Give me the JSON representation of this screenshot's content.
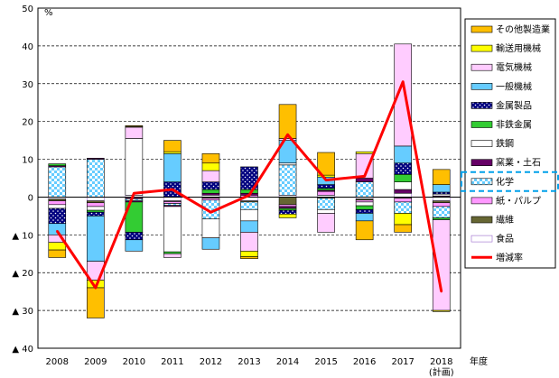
{
  "chart_data": {
    "type": "bar",
    "subtype": "stacked-bar-with-line",
    "y_unit": "%",
    "xlabel": "年度",
    "categories": [
      "2008",
      "2009",
      "2010",
      "2011",
      "2012",
      "2013",
      "2014",
      "2015",
      "2016",
      "2017",
      "2018"
    ],
    "category_notes": [
      "",
      "",
      "",
      "",
      "",
      "",
      "",
      "",
      "",
      "",
      "(計画)"
    ],
    "ylim": [
      -40,
      50
    ],
    "yticks": [
      {
        "value": 50,
        "label": "50"
      },
      {
        "value": 40,
        "label": "40"
      },
      {
        "value": 30,
        "label": "30"
      },
      {
        "value": 20,
        "label": "20"
      },
      {
        "value": 10,
        "label": "10"
      },
      {
        "value": 0,
        "label": "0"
      },
      {
        "value": -10,
        "label": "▲ 10"
      },
      {
        "value": -20,
        "label": "▲ 20"
      },
      {
        "value": -30,
        "label": "▲ 30"
      },
      {
        "value": -40,
        "label": "▲ 40"
      }
    ],
    "grid": "horizontal-dashed",
    "legend_position": "right",
    "highlighted_legend_entry": "化学",
    "series": [
      {
        "name": "食品",
        "type": "bar",
        "color": "#ffffff",
        "pattern": "outline-purple",
        "values": [
          -0.5,
          -1.0,
          0.5,
          -1.0,
          0.5,
          -1.0,
          0.5,
          0.5,
          -0.5,
          1.0,
          -1.0
        ]
      },
      {
        "name": "繊維",
        "type": "bar",
        "color": "#666633",
        "pattern": "solid",
        "values": [
          -0.5,
          -0.5,
          -0.2,
          -0.2,
          -0.3,
          -0.3,
          -2.0,
          -0.3,
          -0.3,
          -0.3,
          -0.5
        ]
      },
      {
        "name": "紙・パルプ",
        "type": "bar",
        "color": "#ff99ff",
        "pattern": "solid",
        "values": [
          -1.0,
          -1.0,
          -0.3,
          -0.5,
          -0.5,
          0.5,
          -0.5,
          1.0,
          -0.5,
          -1.0,
          -1.0
        ]
      },
      {
        "name": "化学",
        "type": "bar",
        "color": "#66ccff",
        "pattern": "checker",
        "values": [
          8.0,
          10.0,
          -0.5,
          -0.5,
          -5.0,
          -2.0,
          8.0,
          -3.0,
          4.0,
          -3.0,
          -3.0
        ]
      },
      {
        "name": "窯業・土石",
        "type": "bar",
        "color": "#660066",
        "pattern": "solid",
        "values": [
          0.3,
          0.3,
          -0.3,
          -0.3,
          0.5,
          0.5,
          -0.5,
          0.3,
          1.0,
          1.0,
          0.3
        ]
      },
      {
        "name": "鉄鋼",
        "type": "bar",
        "color": "#ffffff",
        "pattern": "outline",
        "values": [
          -1.0,
          -1.0,
          15.0,
          -12.0,
          -5.0,
          -3.0,
          0.5,
          -1.0,
          -1.0,
          2.0,
          0.5
        ]
      },
      {
        "name": "非鉄金属",
        "type": "bar",
        "color": "#33cc33",
        "pattern": "solid",
        "values": [
          0.5,
          -0.5,
          -8.0,
          -0.5,
          1.0,
          1.0,
          -0.5,
          0.5,
          -1.0,
          2.0,
          -0.5
        ]
      },
      {
        "name": "金属製品",
        "type": "bar",
        "color": "#000080",
        "pattern": "dotted",
        "values": [
          -4.0,
          -1.0,
          -2.0,
          4.0,
          2.0,
          6.0,
          -1.0,
          1.0,
          -1.0,
          3.0,
          0.5
        ]
      },
      {
        "name": "一般機械",
        "type": "bar",
        "color": "#66ccff",
        "pattern": "solid",
        "values": [
          -3.0,
          -12.0,
          -3.0,
          7.5,
          -3.0,
          -3.0,
          6.0,
          2.0,
          -2.0,
          4.5,
          2.0
        ]
      },
      {
        "name": "電気機械",
        "type": "bar",
        "color": "#ffccff",
        "pattern": "solid",
        "values": [
          -2.0,
          -5.0,
          3.0,
          -1.0,
          3.0,
          -5.0,
          0.5,
          -5.0,
          6.5,
          27.0,
          -24.0
        ]
      },
      {
        "name": "輸送用機械",
        "type": "bar",
        "color": "#ffff00",
        "pattern": "solid",
        "values": [
          -2.0,
          -2.0,
          0.2,
          0.5,
          2.0,
          -1.5,
          -1.0,
          0.5,
          0.5,
          -3.0,
          -0.3
        ]
      },
      {
        "name": "その他製造業",
        "type": "bar",
        "color": "#ffbf00",
        "pattern": "solid",
        "values": [
          -2.0,
          -8.0,
          0.2,
          3.0,
          2.5,
          -0.5,
          9.0,
          6.0,
          -5.0,
          -2.0,
          4.0
        ]
      },
      {
        "name": "増減率",
        "type": "line",
        "color": "#ff0000",
        "values": [
          -9.0,
          -24.0,
          1.0,
          2.0,
          -4.0,
          0.5,
          16.5,
          4.5,
          5.5,
          30.5,
          -25.0
        ]
      }
    ]
  }
}
